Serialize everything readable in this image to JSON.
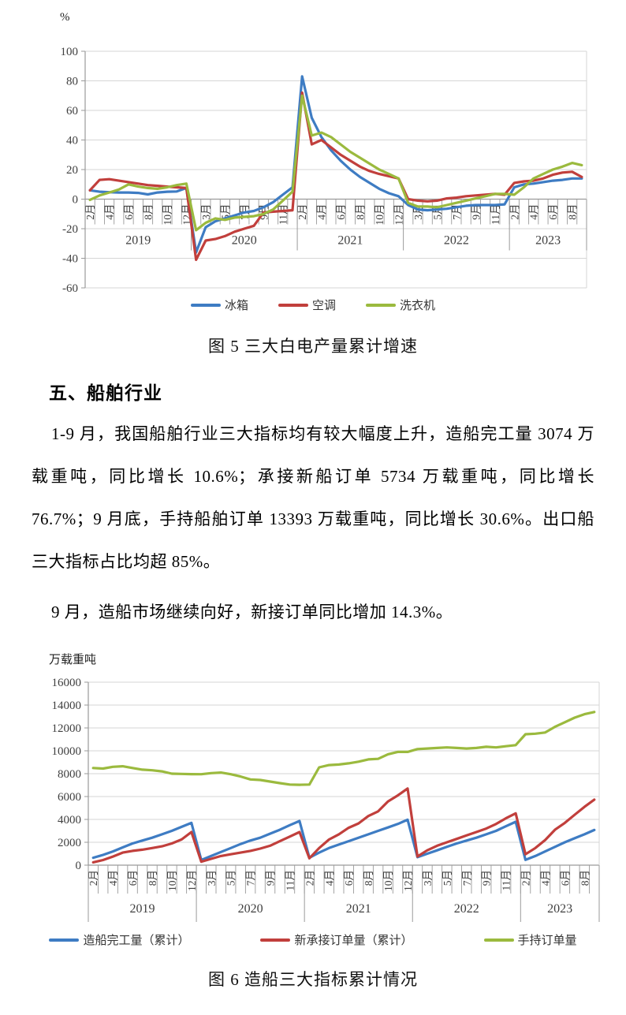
{
  "section": {
    "heading": "五、船舶行业",
    "paragraphs": [
      "1-9 月，我国船舶行业三大指标均有较大幅度上升，造船完工量 3074 万载重吨，同比增长 10.6%；承接新船订单 5734 万载重吨，同比增长 76.7%；9 月底，手持船舶订单 13393 万载重吨，同比增长 30.6%。出口船三大指标占比均超 85%。",
      "9 月，造船市场继续向好，新接订单同比增加 14.3%。"
    ]
  },
  "chart_data": [
    {
      "type": "line",
      "title": "图 5 三大白电产量累计增速",
      "unit_label": "%",
      "ylim": [
        -60,
        100
      ],
      "ystep": 20,
      "y_ticks": [
        "100",
        "80",
        "60",
        "40",
        "20",
        "0",
        "-20",
        "-40",
        "-60"
      ],
      "grid": "horizontal",
      "legend_position": "bottom",
      "years": [
        {
          "label": "2019",
          "count": 11
        },
        {
          "label": "2020",
          "count": 11
        },
        {
          "label": "2021",
          "count": 11
        },
        {
          "label": "2022",
          "count": 11
        },
        {
          "label": "2023",
          "count": 8
        }
      ],
      "x_labels": [
        "2月",
        "3月",
        "4月",
        "5月",
        "6月",
        "7月",
        "8月",
        "9月",
        "10月",
        "11月",
        "12月",
        "2月",
        "3月",
        "4月",
        "5月",
        "6月",
        "7月",
        "8月",
        "9月",
        "10月",
        "11月",
        "12月",
        "2月",
        "3月",
        "4月",
        "5月",
        "6月",
        "7月",
        "8月",
        "9月",
        "10月",
        "11月",
        "12月",
        "2月",
        "3月",
        "4月",
        "5月",
        "6月",
        "7月",
        "8月",
        "9月",
        "10月",
        "11月",
        "12月",
        "2月",
        "3月",
        "4月",
        "5月",
        "6月",
        "7月",
        "8月",
        "9月"
      ],
      "series": [
        {
          "name": "冰箱",
          "color": "#3E7CC3",
          "values": [
            6,
            5,
            4.7,
            4.5,
            4.5,
            4.2,
            3.2,
            4.5,
            5,
            5.2,
            7.5,
            -36,
            -19,
            -15,
            -13,
            -11,
            -9,
            -8,
            -5.5,
            -2,
            3,
            8,
            83,
            55,
            42,
            33,
            26,
            20,
            15,
            11,
            7,
            4,
            2,
            -4,
            -7,
            -7.5,
            -7,
            -6.5,
            -5.5,
            -4.5,
            -4,
            -4,
            -4,
            -3.5,
            8,
            10,
            10.5,
            11.5,
            12.5,
            13,
            14,
            14
          ]
        },
        {
          "name": "空调",
          "color": "#C13F3C",
          "values": [
            6,
            13,
            13.5,
            12.5,
            11.5,
            10.5,
            9.5,
            9,
            8.5,
            8,
            7.5,
            -41,
            -28,
            -27,
            -25,
            -22,
            -20,
            -18,
            -9,
            -8.5,
            -8,
            -7.5,
            72,
            37,
            40,
            35,
            30,
            26,
            22,
            19,
            17,
            15.5,
            14,
            0,
            -1,
            -1.5,
            -1,
            0.5,
            1,
            2,
            2.5,
            3,
            3.5,
            3,
            11,
            12,
            12.5,
            14,
            16.5,
            18,
            18.5,
            15
          ]
        },
        {
          "name": "洗衣机",
          "color": "#9BBA3E",
          "values": [
            -0.5,
            2.5,
            4.5,
            6.5,
            10,
            8.5,
            7.5,
            7,
            8,
            9.5,
            10.5,
            -21,
            -16,
            -13,
            -14,
            -12.5,
            -12,
            -11.5,
            -10,
            -7,
            -1,
            5,
            70,
            43,
            45,
            42,
            37,
            32,
            28,
            24,
            20,
            17,
            14,
            -2.5,
            -5,
            -5,
            -5.5,
            -4,
            -2.5,
            -1,
            0.5,
            2,
            3.5,
            3.5,
            3,
            8,
            14,
            17,
            20,
            22,
            24.5,
            23
          ]
        }
      ]
    },
    {
      "type": "line",
      "title": "图 6 造船三大指标累计情况",
      "unit_label": "万载重吨",
      "ylim": [
        0,
        16000
      ],
      "ystep": 2000,
      "y_ticks": [
        "16000",
        "14000",
        "12000",
        "10000",
        "8000",
        "6000",
        "4000",
        "2000",
        "0"
      ],
      "grid": "horizontal",
      "legend_position": "bottom",
      "years": [
        {
          "label": "2019",
          "count": 11
        },
        {
          "label": "2020",
          "count": 11
        },
        {
          "label": "2021",
          "count": 11
        },
        {
          "label": "2022",
          "count": 11
        },
        {
          "label": "2023",
          "count": 8
        }
      ],
      "x_labels": [
        "2月",
        "3月",
        "4月",
        "5月",
        "6月",
        "7月",
        "8月",
        "9月",
        "10月",
        "11月",
        "12月",
        "2月",
        "3月",
        "4月",
        "5月",
        "6月",
        "7月",
        "8月",
        "9月",
        "10月",
        "11月",
        "12月",
        "2月",
        "3月",
        "4月",
        "5月",
        "6月",
        "7月",
        "8月",
        "9月",
        "10月",
        "11月",
        "12月",
        "2月",
        "3月",
        "4月",
        "5月",
        "6月",
        "7月",
        "8月",
        "9月",
        "10月",
        "11月",
        "12月",
        "2月",
        "3月",
        "4月",
        "5月",
        "6月",
        "7月",
        "8月",
        "9月"
      ],
      "series": [
        {
          "name": "造船完工量（累计）",
          "color": "#3E7CC3",
          "values": [
            650,
            900,
            1200,
            1550,
            1900,
            2150,
            2400,
            2700,
            3000,
            3350,
            3700,
            450,
            800,
            1150,
            1500,
            1850,
            2150,
            2400,
            2750,
            3100,
            3500,
            3860,
            650,
            1100,
            1500,
            1800,
            2100,
            2400,
            2700,
            3000,
            3300,
            3600,
            3970,
            700,
            1000,
            1300,
            1600,
            1900,
            2150,
            2400,
            2700,
            3000,
            3400,
            3790,
            460,
            800,
            1200,
            1600,
            2000,
            2350,
            2700,
            3074
          ]
        },
        {
          "name": "新承接订单量（累计）",
          "color": "#C13F3C",
          "values": [
            250,
            450,
            750,
            1100,
            1250,
            1350,
            1500,
            1650,
            1900,
            2250,
            2900,
            300,
            550,
            800,
            950,
            1100,
            1250,
            1450,
            1700,
            2100,
            2500,
            2900,
            600,
            1500,
            2240,
            2700,
            3270,
            3650,
            4300,
            4700,
            5570,
            6100,
            6700,
            760,
            1300,
            1700,
            2000,
            2300,
            2600,
            2900,
            3200,
            3600,
            4100,
            4530,
            950,
            1500,
            2200,
            3100,
            3700,
            4400,
            5100,
            5734
          ]
        },
        {
          "name": "手持订单量",
          "color": "#9BBA3E",
          "values": [
            8500,
            8450,
            8600,
            8650,
            8500,
            8350,
            8300,
            8200,
            8000,
            7980,
            7960,
            7950,
            8050,
            8100,
            7950,
            7750,
            7500,
            7450,
            7310,
            7170,
            7050,
            7030,
            7050,
            8550,
            8750,
            8800,
            8900,
            9050,
            9250,
            9300,
            9700,
            9900,
            9900,
            10150,
            10200,
            10250,
            10300,
            10250,
            10200,
            10250,
            10350,
            10300,
            10400,
            10500,
            11450,
            11500,
            11600,
            12100,
            12500,
            12900,
            13200,
            13393
          ]
        }
      ]
    }
  ]
}
